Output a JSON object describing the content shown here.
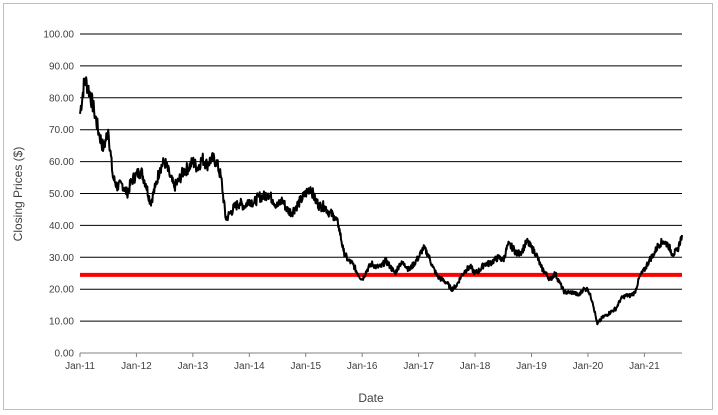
{
  "chart_data": {
    "type": "line",
    "xlabel": "Date",
    "ylabel": "Closing Prices ($)",
    "ylim": [
      0,
      100
    ],
    "y_ticks": [
      "0.00",
      "10.00",
      "20.00",
      "30.00",
      "40.00",
      "50.00",
      "60.00",
      "70.00",
      "80.00",
      "90.00",
      "100.00"
    ],
    "x_ticks": [
      "Jan-11",
      "Jan-12",
      "Jan-13",
      "Jan-14",
      "Jan-15",
      "Jan-16",
      "Jan-17",
      "Jan-18",
      "Jan-19",
      "Jan-20",
      "Jan-21"
    ],
    "x_range": [
      "Jan-11",
      "Sep-21"
    ],
    "grid": true,
    "legend": "none",
    "reference_line": {
      "value": 24.5,
      "color": "#ff0000"
    },
    "series": [
      {
        "color": "#000000",
        "x": [
          "Jan-11",
          "Feb-11",
          "Mar-11",
          "Apr-11",
          "May-11",
          "Jun-11",
          "Jul-11",
          "Aug-11",
          "Sep-11",
          "Oct-11",
          "Nov-11",
          "Dec-11",
          "Jan-12",
          "Feb-12",
          "Mar-12",
          "Apr-12",
          "May-12",
          "Jun-12",
          "Jul-12",
          "Aug-12",
          "Sep-12",
          "Oct-12",
          "Nov-12",
          "Dec-12",
          "Jan-13",
          "Feb-13",
          "Mar-13",
          "Apr-13",
          "May-13",
          "Jun-13",
          "Jul-13",
          "Aug-13",
          "Sep-13",
          "Oct-13",
          "Nov-13",
          "Dec-13",
          "Jan-14",
          "Feb-14",
          "Mar-14",
          "Apr-14",
          "May-14",
          "Jun-14",
          "Jul-14",
          "Aug-14",
          "Sep-14",
          "Oct-14",
          "Nov-14",
          "Dec-14",
          "Jan-15",
          "Feb-15",
          "Mar-15",
          "Apr-15",
          "May-15",
          "Jun-15",
          "Jul-15",
          "Aug-15",
          "Sep-15",
          "Oct-15",
          "Nov-15",
          "Dec-15",
          "Jan-16",
          "Feb-16",
          "Mar-16",
          "Apr-16",
          "May-16",
          "Jun-16",
          "Jul-16",
          "Aug-16",
          "Sep-16",
          "Oct-16",
          "Nov-16",
          "Dec-16",
          "Jan-17",
          "Feb-17",
          "Mar-17",
          "Apr-17",
          "May-17",
          "Jun-17",
          "Jul-17",
          "Aug-17",
          "Sep-17",
          "Oct-17",
          "Nov-17",
          "Dec-17",
          "Jan-18",
          "Feb-18",
          "Mar-18",
          "Apr-18",
          "May-18",
          "Jun-18",
          "Jul-18",
          "Aug-18",
          "Sep-18",
          "Oct-18",
          "Nov-18",
          "Dec-18",
          "Jan-19",
          "Feb-19",
          "Mar-19",
          "Apr-19",
          "May-19",
          "Jun-19",
          "Jul-19",
          "Aug-19",
          "Sep-19",
          "Oct-19",
          "Nov-19",
          "Dec-19",
          "Jan-20",
          "Feb-20",
          "Mar-20",
          "Apr-20",
          "May-20",
          "Jun-20",
          "Jul-20",
          "Aug-20",
          "Sep-20",
          "Oct-20",
          "Nov-20",
          "Dec-20",
          "Jan-21",
          "Feb-21",
          "Mar-21",
          "Apr-21",
          "May-21",
          "Jun-21",
          "Jul-21",
          "Aug-21",
          "Sep-21"
        ],
        "values": [
          75,
          86,
          82,
          76,
          69,
          64,
          70,
          55,
          52,
          53,
          50,
          54,
          56,
          57,
          53,
          47,
          52,
          58,
          60,
          56,
          52,
          54,
          57,
          58,
          60,
          58,
          61,
          59,
          61,
          60,
          55,
          42,
          44,
          46,
          47,
          46,
          48,
          47,
          49,
          49,
          50,
          48,
          46,
          48,
          45,
          44,
          46,
          48,
          50,
          52,
          48,
          46,
          46,
          44,
          43,
          40,
          32,
          29,
          28,
          25,
          23,
          26,
          28,
          27,
          27,
          29,
          27,
          25,
          28,
          28,
          26,
          28,
          30,
          33,
          31,
          27,
          24,
          23,
          22,
          20,
          21,
          24,
          26,
          27,
          25,
          26,
          28,
          28,
          29,
          30,
          29,
          34,
          33,
          31,
          32,
          35,
          33,
          31,
          27,
          25,
          23,
          25,
          22,
          19,
          19,
          19,
          18,
          20,
          20,
          16,
          9,
          11,
          12,
          13,
          14,
          17,
          18,
          18,
          19,
          24,
          26,
          29,
          31,
          34,
          35,
          34,
          31,
          32,
          37
        ]
      }
    ]
  }
}
